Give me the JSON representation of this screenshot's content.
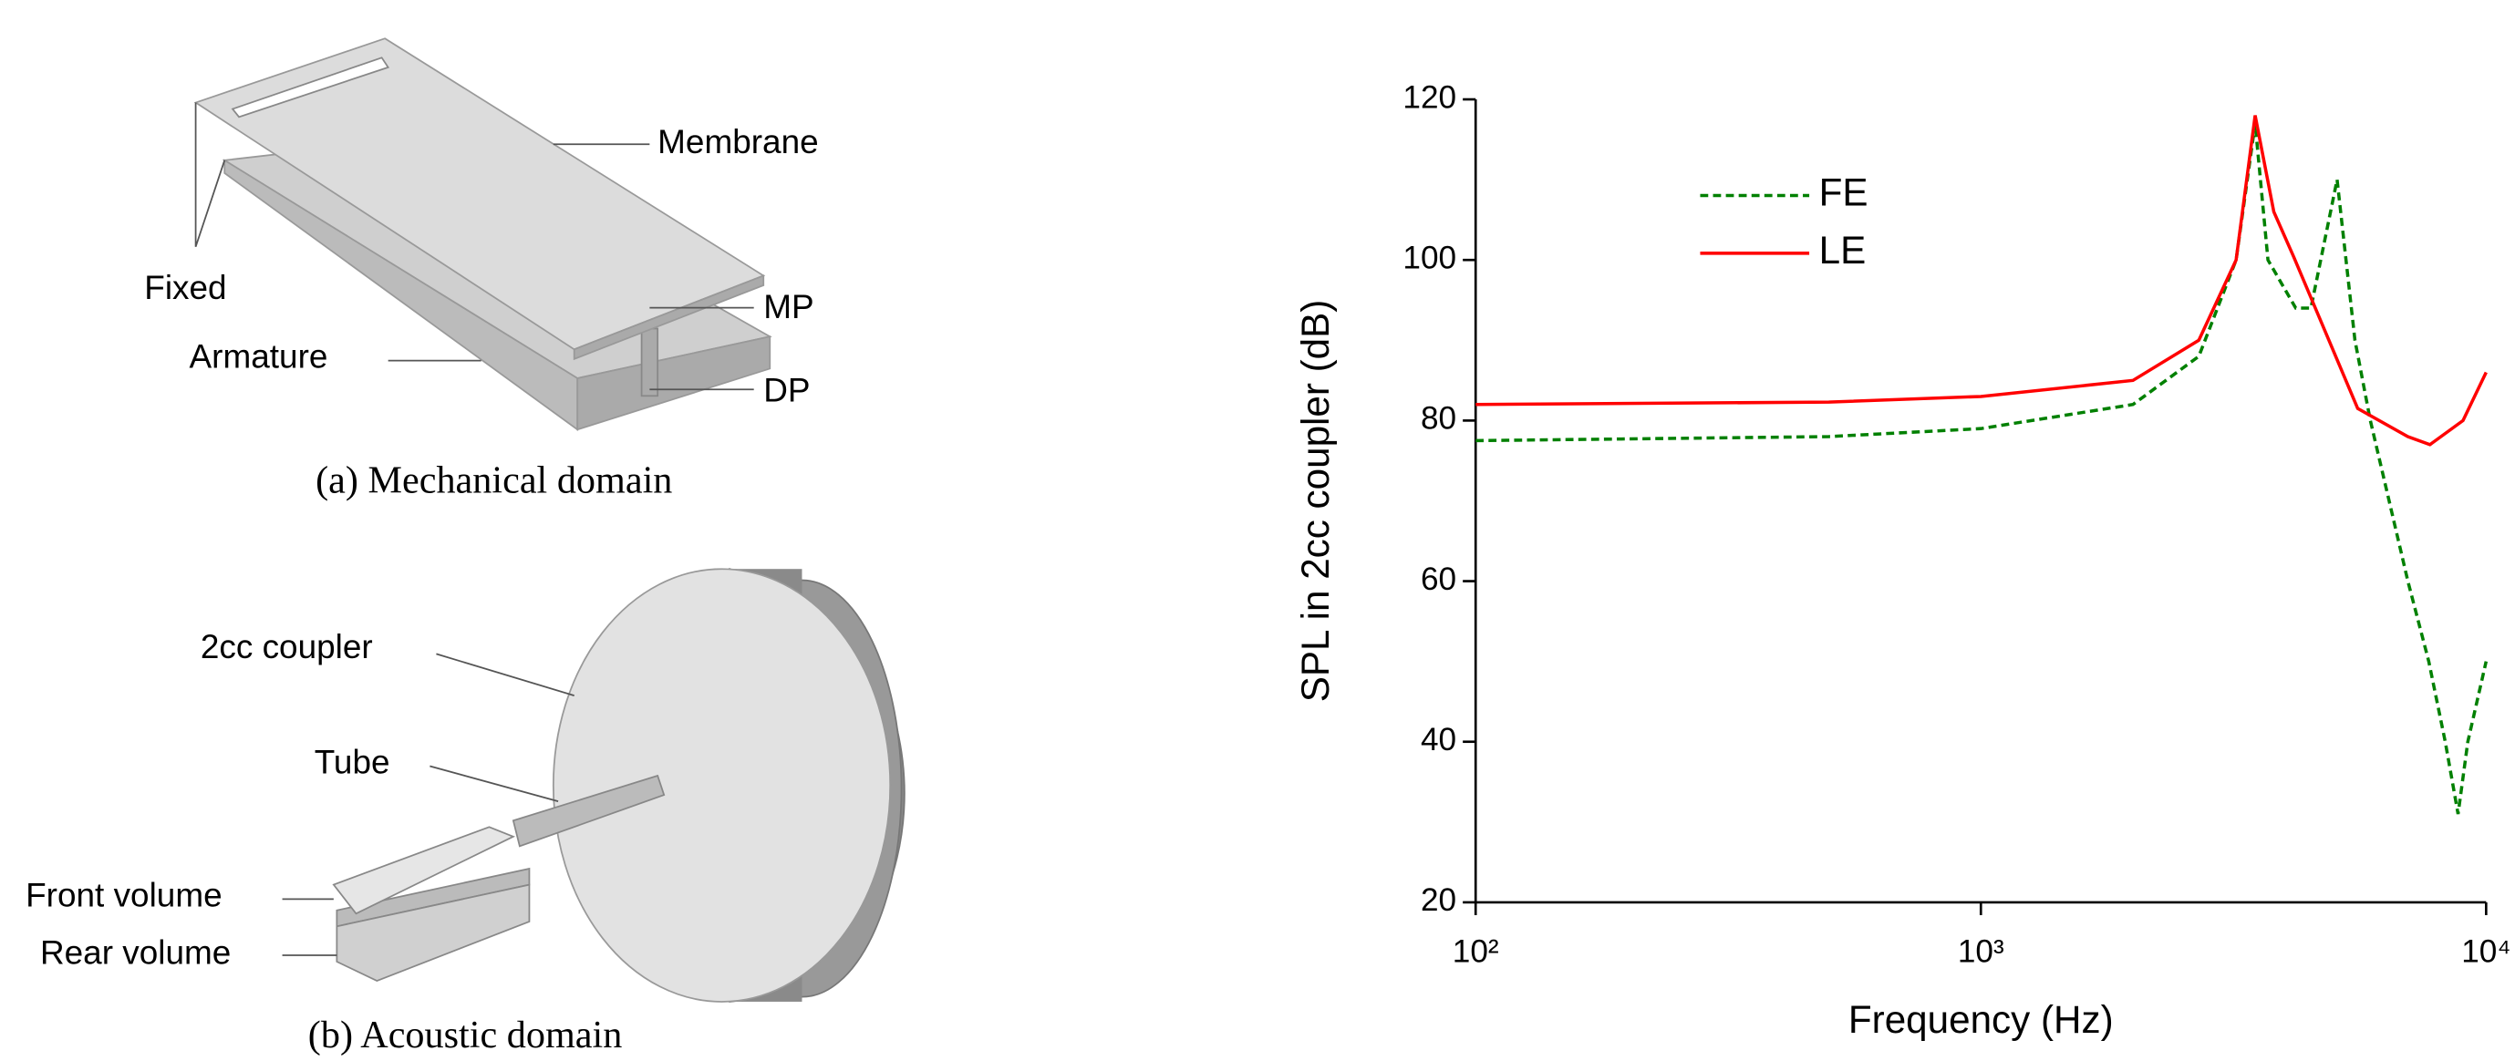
{
  "diagram": {
    "mechanical": {
      "labels": [
        "Membrane",
        "Fixed",
        "MP",
        "Armature",
        "DP"
      ],
      "caption": "(a) Mechanical domain"
    },
    "acoustic": {
      "labels": [
        "2cc coupler",
        "Tube",
        "Front volume",
        "Rear volume"
      ],
      "caption": "(b) Acoustic domain"
    }
  },
  "chart_data": {
    "type": "line",
    "x_label": "Frequency (Hz)",
    "y_label": "SPL in 2cc coupler (dB)",
    "xscale": "log",
    "xlim": [
      100,
      10000
    ],
    "xticks": [
      {
        "value": 100,
        "label": "10²"
      },
      {
        "value": 1000,
        "label": "10³"
      },
      {
        "value": 10000,
        "label": "10⁴"
      }
    ],
    "ylim": [
      20,
      120
    ],
    "yticks": [
      20,
      40,
      60,
      80,
      100,
      120
    ],
    "legend": "upper left",
    "series": [
      {
        "name": "FE",
        "color": "#008000",
        "dash": true,
        "x": [
          100,
          500,
          1000,
          2000,
          2700,
          3200,
          3490,
          3700,
          4200,
          4500,
          5070,
          5500,
          5900,
          7000,
          7700,
          8300,
          8800,
          9200,
          10000
        ],
        "values": [
          77.5,
          78,
          79,
          82,
          88,
          100,
          117,
          100,
          94,
          94,
          110,
          90,
          80,
          60,
          50,
          40,
          31,
          40,
          50
        ]
      },
      {
        "name": "LE",
        "color": "#ff0000",
        "dash": false,
        "x": [
          100,
          500,
          1000,
          2000,
          2700,
          3200,
          3490,
          3800,
          4160,
          5570,
          7000,
          7740,
          9000,
          10000
        ],
        "values": [
          82,
          82.3,
          83,
          85,
          90,
          100,
          118,
          106,
          100.4,
          81.5,
          78,
          77,
          80,
          86
        ]
      }
    ]
  }
}
